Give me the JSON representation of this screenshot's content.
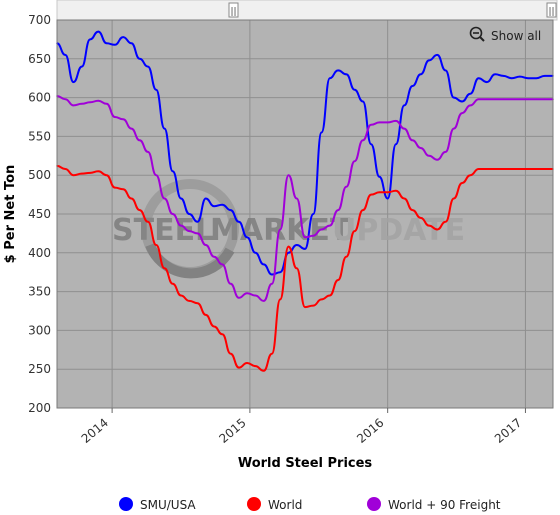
{
  "colors": {
    "plot_bg": "#b3b3b3",
    "navigator_bg": "#f0f0f0",
    "grid": "#8f8f8f",
    "smu_usa": "#0000ff",
    "world": "#ff0000",
    "world_freight": "#a000d8",
    "watermark": "#8a8a8a"
  },
  "chart_data": {
    "type": "line",
    "title": "",
    "xlabel": "World Steel Prices",
    "ylabel": "$ Per Net Ton",
    "ylim": [
      200,
      700
    ],
    "yticks": [
      200,
      250,
      300,
      350,
      400,
      450,
      500,
      550,
      600,
      650,
      700
    ],
    "xlim": [
      2013.6,
      2017.2
    ],
    "xticks": [
      {
        "value": 2014,
        "label": "2014"
      },
      {
        "value": 2015,
        "label": "2015"
      },
      {
        "value": 2016,
        "label": "2016"
      },
      {
        "value": 2017,
        "label": "2017"
      }
    ],
    "grid": true,
    "legend_position": "bottom",
    "series": [
      {
        "name": "SMU/USA",
        "color": "#0000ff",
        "x": [
          2013.6,
          2013.66,
          2013.72,
          2013.78,
          2013.84,
          2013.9,
          2013.96,
          2014.02,
          2014.08,
          2014.14,
          2014.2,
          2014.26,
          2014.32,
          2014.38,
          2014.44,
          2014.5,
          2014.56,
          2014.62,
          2014.68,
          2014.74,
          2014.8,
          2014.86,
          2014.92,
          2014.98,
          2015.04,
          2015.1,
          2015.16,
          2015.22,
          2015.28,
          2015.34,
          2015.4,
          2015.46,
          2015.52,
          2015.58,
          2015.64,
          2015.7,
          2015.76,
          2015.82,
          2015.88,
          2015.94,
          2016.0,
          2016.06,
          2016.12,
          2016.18,
          2016.24,
          2016.3,
          2016.36,
          2016.42,
          2016.48,
          2016.54,
          2016.6,
          2016.66,
          2016.72,
          2016.78,
          2016.84,
          2016.9,
          2016.96,
          2017.02,
          2017.08,
          2017.14,
          2017.2
        ],
        "values": [
          670,
          655,
          620,
          640,
          675,
          685,
          670,
          668,
          678,
          670,
          650,
          640,
          610,
          560,
          505,
          470,
          450,
          440,
          470,
          460,
          462,
          455,
          440,
          420,
          400,
          385,
          372,
          375,
          400,
          410,
          405,
          450,
          555,
          625,
          635,
          630,
          610,
          595,
          540,
          498,
          470,
          540,
          590,
          615,
          630,
          648,
          655,
          635,
          600,
          595,
          605,
          625,
          620,
          630,
          628,
          625,
          627,
          625,
          625,
          628,
          628
        ]
      },
      {
        "name": "World",
        "color": "#ff0000",
        "x": [
          2013.6,
          2013.66,
          2013.72,
          2013.78,
          2013.84,
          2013.9,
          2013.96,
          2014.02,
          2014.08,
          2014.14,
          2014.2,
          2014.26,
          2014.32,
          2014.38,
          2014.44,
          2014.5,
          2014.56,
          2014.62,
          2014.68,
          2014.74,
          2014.8,
          2014.86,
          2014.92,
          2014.98,
          2015.04,
          2015.1,
          2015.16,
          2015.22,
          2015.28,
          2015.34,
          2015.4,
          2015.46,
          2015.52,
          2015.58,
          2015.64,
          2015.7,
          2015.76,
          2015.82,
          2015.88,
          2015.94,
          2016.0,
          2016.06,
          2016.12,
          2016.18,
          2016.24,
          2016.3,
          2016.36,
          2016.42,
          2016.48,
          2016.54,
          2016.6,
          2016.66,
          2016.72,
          2016.78,
          2016.84,
          2016.9,
          2016.96,
          2017.02,
          2017.08,
          2017.14,
          2017.2
        ],
        "values": [
          512,
          508,
          500,
          502,
          503,
          505,
          500,
          484,
          482,
          470,
          455,
          440,
          410,
          380,
          360,
          345,
          338,
          335,
          320,
          305,
          295,
          270,
          252,
          258,
          254,
          248,
          270,
          340,
          408,
          380,
          330,
          332,
          340,
          345,
          365,
          395,
          428,
          455,
          475,
          478,
          478,
          480,
          470,
          455,
          445,
          435,
          430,
          440,
          470,
          490,
          500,
          508,
          508,
          508,
          508,
          508,
          508,
          508,
          508,
          508,
          508
        ]
      },
      {
        "name": "World + 90 Freight",
        "color": "#a000d8",
        "x": [
          2013.6,
          2013.66,
          2013.72,
          2013.78,
          2013.84,
          2013.9,
          2013.96,
          2014.02,
          2014.08,
          2014.14,
          2014.2,
          2014.26,
          2014.32,
          2014.38,
          2014.44,
          2014.5,
          2014.56,
          2014.62,
          2014.68,
          2014.74,
          2014.8,
          2014.86,
          2014.92,
          2014.98,
          2015.04,
          2015.1,
          2015.16,
          2015.22,
          2015.28,
          2015.34,
          2015.4,
          2015.46,
          2015.52,
          2015.58,
          2015.64,
          2015.7,
          2015.76,
          2015.82,
          2015.88,
          2015.94,
          2016.0,
          2016.06,
          2016.12,
          2016.18,
          2016.24,
          2016.3,
          2016.36,
          2016.42,
          2016.48,
          2016.54,
          2016.6,
          2016.66,
          2016.72,
          2016.78,
          2016.84,
          2016.9,
          2016.96,
          2017.02,
          2017.08,
          2017.14,
          2017.2
        ],
        "values": [
          602,
          598,
          590,
          592,
          594,
          596,
          592,
          575,
          572,
          560,
          545,
          530,
          500,
          470,
          450,
          435,
          428,
          425,
          410,
          395,
          385,
          360,
          342,
          348,
          345,
          338,
          360,
          430,
          500,
          470,
          420,
          422,
          430,
          435,
          455,
          485,
          518,
          545,
          565,
          568,
          568,
          570,
          560,
          545,
          535,
          525,
          520,
          530,
          560,
          580,
          590,
          598,
          598,
          598,
          598,
          598,
          598,
          598,
          598,
          598,
          598
        ]
      }
    ]
  },
  "watermark": {
    "left": "STEEL",
    "middle": "MARKET",
    "right": "UPDATE"
  },
  "navigator": {
    "handle_left": "||",
    "handle_right": "||"
  },
  "show_all": {
    "label": "Show all",
    "icon": "zoom-out-icon"
  },
  "legend": [
    {
      "label": "SMU/USA",
      "color": "#0000ff"
    },
    {
      "label": "World",
      "color": "#ff0000"
    },
    {
      "label": "World + 90 Freight",
      "color": "#a000d8"
    }
  ]
}
